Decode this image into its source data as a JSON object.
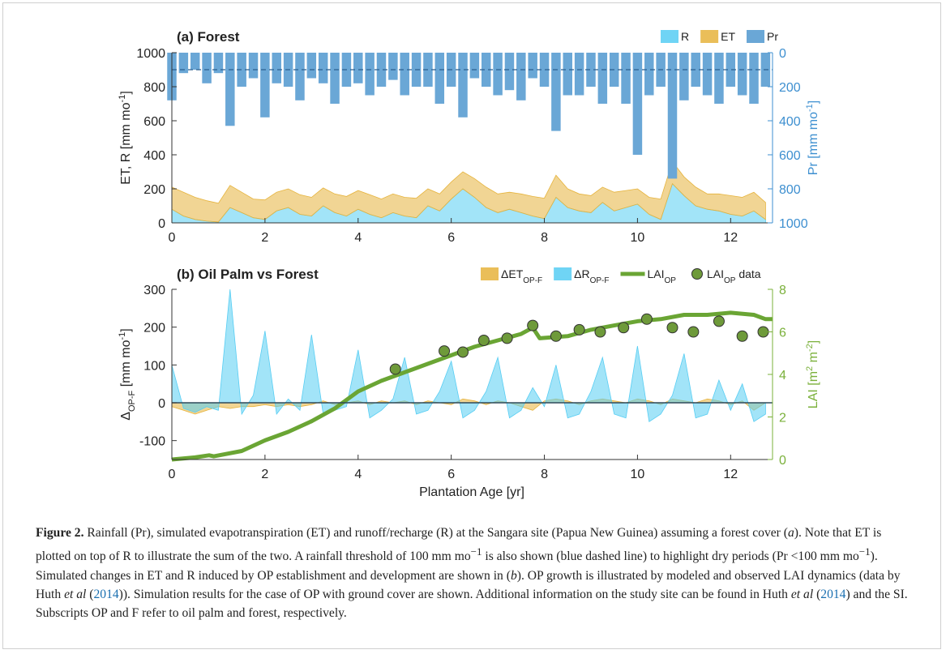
{
  "chart_data": [
    {
      "type": "area",
      "title": "(a) Forest",
      "x": [
        0,
        0.25,
        0.5,
        0.75,
        1,
        1.25,
        1.5,
        1.75,
        2,
        2.25,
        2.5,
        2.75,
        3,
        3.25,
        3.5,
        3.75,
        4,
        4.25,
        4.5,
        4.75,
        5,
        5.25,
        5.5,
        5.75,
        6,
        6.25,
        6.5,
        6.75,
        7,
        7.25,
        7.5,
        7.75,
        8,
        8.25,
        8.5,
        8.75,
        9,
        9.25,
        9.5,
        9.75,
        10,
        10.25,
        10.5,
        10.75,
        11,
        11.25,
        11.5,
        11.75,
        12,
        12.25,
        12.5,
        12.75
      ],
      "series": [
        {
          "name": "R",
          "type": "area",
          "color": "#56cdf3",
          "values": [
            80,
            40,
            20,
            10,
            5,
            90,
            60,
            30,
            20,
            70,
            90,
            50,
            40,
            100,
            60,
            40,
            80,
            50,
            30,
            60,
            40,
            30,
            100,
            70,
            140,
            200,
            150,
            90,
            60,
            80,
            60,
            40,
            25,
            150,
            90,
            70,
            60,
            120,
            70,
            90,
            110,
            50,
            20,
            230,
            160,
            100,
            80,
            70,
            50,
            40,
            70,
            20
          ]
        },
        {
          "name": "ET",
          "type": "area",
          "color": "#e6b33c",
          "stacked": true,
          "values": [
            130,
            140,
            130,
            120,
            110,
            130,
            120,
            110,
            115,
            110,
            110,
            115,
            110,
            105,
            110,
            115,
            110,
            115,
            110,
            110,
            110,
            115,
            100,
            100,
            100,
            100,
            110,
            120,
            110,
            100,
            110,
            115,
            120,
            130,
            110,
            100,
            100,
            90,
            110,
            100,
            90,
            100,
            120,
            130,
            110,
            110,
            90,
            100,
            110,
            110,
            110,
            100
          ]
        },
        {
          "name": "Pr",
          "type": "bar",
          "color": "#6aa7d6",
          "axis": "y2",
          "values": [
            280,
            120,
            100,
            180,
            120,
            430,
            200,
            150,
            380,
            180,
            200,
            280,
            150,
            180,
            300,
            200,
            180,
            250,
            200,
            160,
            250,
            200,
            200,
            300,
            200,
            380,
            150,
            200,
            250,
            220,
            280,
            150,
            200,
            460,
            250,
            250,
            200,
            300,
            200,
            300,
            600,
            250,
            200,
            740,
            280,
            200,
            250,
            300,
            200,
            250,
            300,
            200
          ]
        }
      ],
      "threshold": 100,
      "xlim": [
        0,
        12.9
      ],
      "xticks": [
        0,
        2,
        4,
        6,
        8,
        10,
        12
      ],
      "ylim": [
        0,
        1000
      ],
      "yticks": [
        0,
        200,
        400,
        600,
        800,
        1000
      ],
      "y2lim": [
        1000,
        0
      ],
      "y2ticks": [
        0,
        200,
        400,
        600,
        800,
        1000
      ],
      "y2color": "#3d8fd0",
      "ylabel": [
        "ET, R [mm mo",
        "-1",
        "]"
      ],
      "y2label": [
        "Pr [mm mo",
        "-1",
        "]"
      ]
    },
    {
      "type": "area",
      "title": "(b) Oil Palm vs Forest",
      "x": [
        0,
        0.25,
        0.5,
        0.75,
        1,
        1.25,
        1.5,
        1.75,
        2,
        2.25,
        2.5,
        2.75,
        3,
        3.25,
        3.5,
        3.75,
        4,
        4.25,
        4.5,
        4.75,
        5,
        5.25,
        5.5,
        5.75,
        6,
        6.25,
        6.5,
        6.75,
        7,
        7.25,
        7.5,
        7.75,
        8,
        8.25,
        8.5,
        8.75,
        9,
        9.25,
        9.5,
        9.75,
        10,
        10.25,
        10.5,
        10.75,
        11,
        11.25,
        11.5,
        11.75,
        12,
        12.25,
        12.5,
        12.75
      ],
      "series": [
        {
          "name": [
            "ΔET",
            "OP-F"
          ],
          "type": "area",
          "color": "#e6b33c",
          "values": [
            -10,
            -20,
            -30,
            -20,
            -10,
            -15,
            -10,
            -10,
            -5,
            -10,
            -5,
            -10,
            -5,
            5,
            -5,
            0,
            5,
            -5,
            5,
            0,
            5,
            -5,
            5,
            0,
            -5,
            10,
            5,
            -5,
            5,
            0,
            -10,
            -20,
            5,
            10,
            5,
            -5,
            5,
            10,
            5,
            0,
            10,
            5,
            -5,
            10,
            5,
            0,
            10,
            5,
            -5,
            5,
            -20,
            0
          ]
        },
        {
          "name": [
            "ΔR",
            "OP-F"
          ],
          "type": "area",
          "color": "#56cdf3",
          "values": [
            100,
            -15,
            -25,
            -10,
            -20,
            300,
            -30,
            20,
            190,
            -30,
            10,
            -20,
            180,
            -30,
            -20,
            -10,
            140,
            -40,
            -20,
            10,
            120,
            -30,
            -20,
            30,
            110,
            -40,
            -20,
            30,
            120,
            -40,
            -20,
            40,
            -10,
            100,
            -40,
            -30,
            30,
            120,
            -30,
            -40,
            150,
            -50,
            -30,
            20,
            130,
            -40,
            -30,
            60,
            -20,
            50,
            -50,
            -30
          ]
        },
        {
          "name": [
            "LAI",
            "OP"
          ],
          "type": "line",
          "color": "#6aa534",
          "axis": "y2",
          "x": [
            0,
            0.5,
            0.8,
            0.9,
            1.5,
            2,
            2.5,
            3,
            3.5,
            4,
            4.5,
            5,
            5.5,
            6,
            6.5,
            7,
            7.5,
            7.75,
            7.9,
            8.5,
            9,
            9.5,
            10,
            10.5,
            11,
            11.5,
            12,
            12.5,
            12.75,
            12.9
          ],
          "values": [
            0,
            0.1,
            0.2,
            0.15,
            0.4,
            0.9,
            1.3,
            1.8,
            2.4,
            3.2,
            3.7,
            4.1,
            4.5,
            4.9,
            5.3,
            5.6,
            5.9,
            6.2,
            5.7,
            5.8,
            6.1,
            6.3,
            6.5,
            6.6,
            6.8,
            6.8,
            6.9,
            6.8,
            6.6,
            6.6
          ]
        },
        {
          "name": [
            "LAI",
            "OP",
            " data"
          ],
          "type": "scatter",
          "color": "#6e9a3a",
          "axis": "y2",
          "x": [
            4.8,
            5.85,
            6.25,
            6.7,
            7.2,
            7.75,
            8.25,
            8.75,
            9.2,
            9.7,
            10.2,
            10.75,
            11.2,
            11.75,
            12.25,
            12.7
          ],
          "values": [
            4.25,
            5.1,
            5.05,
            5.6,
            5.7,
            6.3,
            5.8,
            6.1,
            6,
            6.2,
            6.6,
            6.2,
            6,
            6.5,
            5.8,
            6
          ]
        }
      ],
      "xlim": [
        0,
        12.9
      ],
      "xticks": [
        0,
        2,
        4,
        6,
        8,
        10,
        12
      ],
      "ylim": [
        -150,
        300
      ],
      "yticks": [
        -100,
        0,
        100,
        200,
        300
      ],
      "y2lim": [
        0,
        8
      ],
      "y2ticks": [
        0,
        2,
        4,
        6,
        8
      ],
      "y2color": "#7ab03a",
      "ylabel": [
        "Δ",
        "OP-F",
        " [mm mo",
        "-1",
        "]"
      ],
      "y2label": [
        "LAI [m",
        "2",
        " m",
        "-2",
        "]"
      ],
      "xlabel": "Plantation Age [yr]"
    }
  ],
  "caption": [
    "Figure 2.",
    " Rainfall (Pr), simulated evapotranspiration (ET) and runoff/recharge (R) at the Sangara site (Papua New Guinea) assuming a forest cover (",
    "a",
    "). Note that ET is plotted on top of R to illustrate the sum of the two. A rainfall threshold of 100 mm mo",
    "−1",
    " is also shown (blue dashed line) to highlight dry periods (Pr <100 mm mo",
    "−1",
    "). Simulated changes in ET and R induced by OP establishment and development are shown in (",
    "b",
    "). OP growth is illustrated by modeled and observed LAI dynamics (data by Huth ",
    "et al",
    " (",
    "2014",
    ")). Simulation results for the case of OP with ground cover are shown. Additional information on the study site can be found in Huth ",
    "et al",
    " (",
    "2014",
    ") and the SI. Subscripts OP and F refer to oil palm and forest, respectively."
  ]
}
